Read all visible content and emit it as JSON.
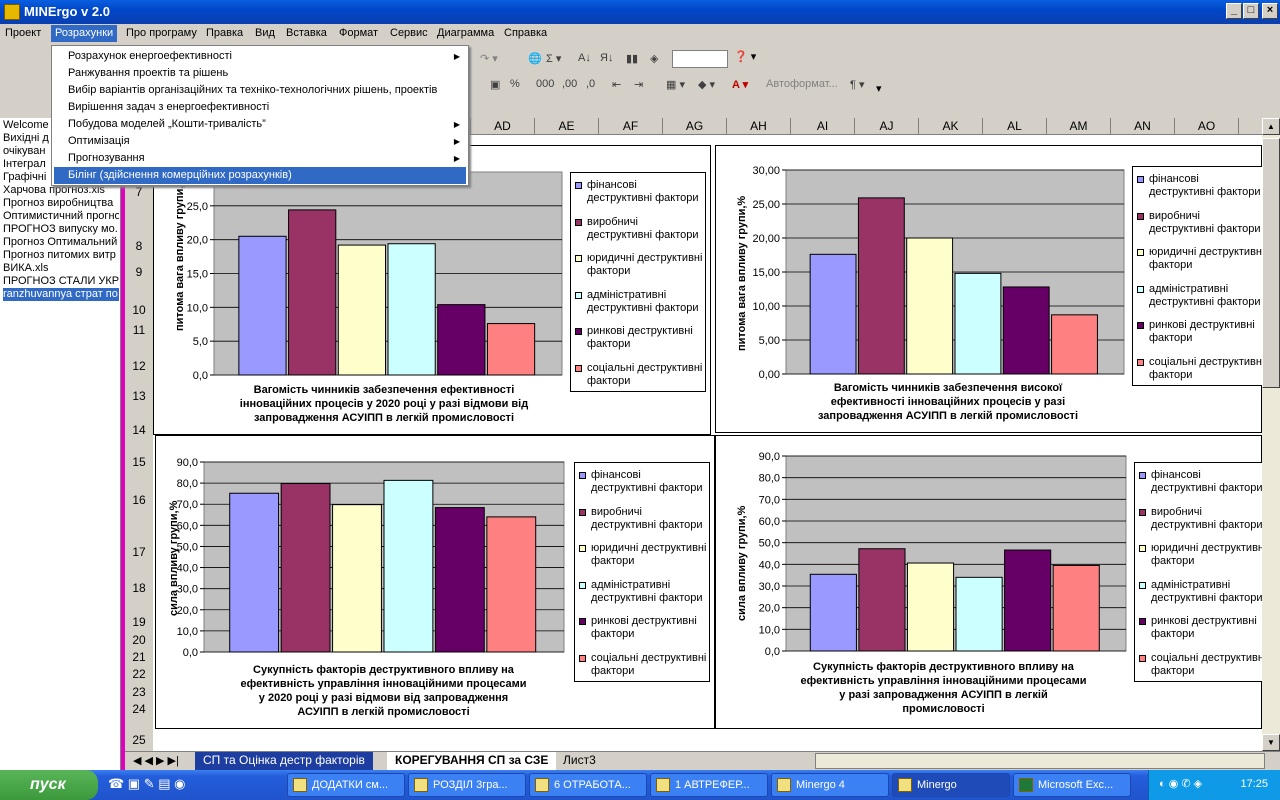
{
  "window": {
    "title": "MINErgo v 2.0"
  },
  "menu": [
    "Проект",
    "Розрахунки",
    "Про програму",
    "Правка",
    "Вид",
    "Вставка",
    "Формат",
    "Сервис",
    "Диаграмма",
    "Справка"
  ],
  "dropdown": [
    {
      "label": "Розрахунок енергоефективності",
      "submenu": true
    },
    {
      "label": "Ранжування проектів та рішень",
      "submenu": false
    },
    {
      "label": "Вибір варіантів організаційних та техніко-технологічних рішень, проектів",
      "submenu": false
    },
    {
      "label": "Вирішення задач з енергоефективності",
      "submenu": false
    },
    {
      "label": "Побудова моделей „Кошти-тривалість”",
      "submenu": true
    },
    {
      "label": "Оптимізація",
      "submenu": true
    },
    {
      "label": "Прогнозування",
      "submenu": true
    },
    {
      "label": "Білінг (здійснення комерційних розрахунків)",
      "submenu": false
    }
  ],
  "toolbar": {
    "autoformat": "Автоформат..."
  },
  "left_files": [
    "Welcome",
    "Вихідні д",
    "очікуван",
    "Інтеграл",
    "Графічні",
    "Харчова прогноз.xls",
    "Прогноз виробництва",
    "Оптимистичний прогно",
    "ПРОГНОЗ випуску мо.",
    "Прогноз Оптимальний",
    "Прогноз питомих витр",
    "ВИКА.xls",
    "ПРОГНОЗ СТАЛИ УКР",
    "ranzhuvannya страт по"
  ],
  "columns": [
    "AD",
    "AE",
    "AF",
    "AG",
    "AH",
    "AI",
    "AJ",
    "AK",
    "AL",
    "AM",
    "AN",
    "AO"
  ],
  "rows": [
    "7",
    "8",
    "9",
    "10",
    "11",
    "12",
    "13",
    "14",
    "15",
    "16",
    "17",
    "18",
    "19",
    "20",
    "21",
    "22",
    "23",
    "24",
    "25"
  ],
  "sheet_tabs": [
    "СП та Оцінка дестр факторів",
    "КОРЕГУВАННЯ СП за СЗЕ",
    "Лист3"
  ],
  "colors": {
    "finance": "#9999ff",
    "production": "#993366",
    "legal": "#ffffcc",
    "admin": "#ccffff",
    "market": "#660066",
    "social": "#ff8080",
    "plot_bg": "#c0c0c0"
  },
  "chart_data": [
    {
      "type": "bar",
      "ylabel": "питома вага впливу групи,%",
      "title": "Вагомість чинників забезпечення ефективності інноваційних процесів у 2020 році у разі відмови від запровадження АСУІПП в легкій промисловості",
      "title_lines": [
        "Вагомість чинників забезпечення ефективності",
        "інноваційних процесів у 2020 році у разі відмови від",
        "запровадження АСУІПП в легкій промисловості"
      ],
      "ylim": [
        0,
        30
      ],
      "ticks": [
        "0,0",
        "5,0",
        "10,0",
        "15,0",
        "20,0",
        "25,0"
      ],
      "series": [
        {
          "name": "фінансові деструктивні фактори",
          "legend": [
            "фінансові",
            "деструктивні фактори"
          ],
          "value": 20.5
        },
        {
          "name": "виробничі деструктивні фактори",
          "legend": [
            "виробничі",
            "деструктивні фактори"
          ],
          "value": 24.4
        },
        {
          "name": "юридичні деструктивні фактори",
          "legend": [
            "юридичні деструктивні",
            "фактори"
          ],
          "value": 19.2
        },
        {
          "name": "адміністративні деструктивні фактори",
          "legend": [
            "адміністративні",
            "деструктивні фактори"
          ],
          "value": 19.4
        },
        {
          "name": "ринкові деструктивні фактори",
          "legend": [
            "ринкові деструктивні",
            "фактори"
          ],
          "value": 10.4
        },
        {
          "name": "соціальні деструктивні фактори",
          "legend": [
            "соціальні деструктивні",
            "фактори"
          ],
          "value": 7.6
        }
      ]
    },
    {
      "type": "bar",
      "ylabel": "питома вага впливу групи,%",
      "title": "Вагомість чинників забезпечення високої ефективності інноваційних процесів у разі запровадження АСУІПП в легкій промисловості",
      "title_lines": [
        "Вагомість чинників забезпечення високої",
        "ефективності інноваційних процесів у разі",
        "запровадження АСУІПП в легкій промисловості"
      ],
      "ylim": [
        0,
        30
      ],
      "ticks": [
        "0,00",
        "5,00",
        "10,00",
        "15,00",
        "20,00",
        "25,00",
        "30,00"
      ],
      "series": [
        {
          "name": "фінансові деструктивні фактори",
          "legend": [
            "фінансові",
            "деструктивні фактори"
          ],
          "value": 17.6
        },
        {
          "name": "виробничі деструктивні фактори",
          "legend": [
            "виробничі",
            "деструктивні фактори"
          ],
          "value": 25.9
        },
        {
          "name": "юридичні деструктивні фактори",
          "legend": [
            "юридичні деструктивні",
            "фактори"
          ],
          "value": 20.0
        },
        {
          "name": "адміністративні деструктивні фактори",
          "legend": [
            "адміністративні",
            "деструктивні фактори"
          ],
          "value": 14.8
        },
        {
          "name": "ринкові деструктивні фактори",
          "legend": [
            "ринкові деструктивні",
            "фактори"
          ],
          "value": 12.8
        },
        {
          "name": "соціальні деструктивні фактори",
          "legend": [
            "соціальні деструктивні",
            "фактори"
          ],
          "value": 8.7
        }
      ]
    },
    {
      "type": "bar",
      "ylabel": "сила впливу групи,%",
      "title": "Сукупність факторів деструктивного впливу на ефективність управління інноваційними процесами у 2020 році у разі відмови від запровадження АСУІПП в легкій промисловості",
      "title_lines": [
        "Сукупність факторів деструктивного впливу на",
        "ефективність управління інноваційними процесами",
        "у 2020 році у разі відмови від запровадження",
        "АСУІПП в легкій промисловості"
      ],
      "ylim": [
        0,
        90
      ],
      "ticks": [
        "0,0",
        "10,0",
        "20,0",
        "30,0",
        "40,0",
        "50,0",
        "60,0",
        "70,0",
        "80,0",
        "90,0"
      ],
      "series": [
        {
          "name": "фінансові деструктивні фактори",
          "legend": [
            "фінансові",
            "деструктивні фактори"
          ],
          "value": 75.2
        },
        {
          "name": "виробничі деструктивні фактори",
          "legend": [
            "виробничі",
            "деструктивні фактори"
          ],
          "value": 79.8
        },
        {
          "name": "юридичні деструктивні фактори",
          "legend": [
            "юридичні деструктивні",
            "фактори"
          ],
          "value": 69.8
        },
        {
          "name": "адміністративні деструктивні фактори",
          "legend": [
            "адміністративні",
            "деструктивні фактори"
          ],
          "value": 81.3
        },
        {
          "name": "ринкові деструктивні фактори",
          "legend": [
            "ринкові деструктивні",
            "фактори"
          ],
          "value": 68.4
        },
        {
          "name": "соціальні деструктивні фактори",
          "legend": [
            "соціальні деструктивні",
            "фактори"
          ],
          "value": 64.0
        }
      ]
    },
    {
      "type": "bar",
      "ylabel": "сила впливу групи,%",
      "title": "Сукупність факторів деструктивного впливу на ефективність управління інноваційними процесами у разі запровадження АСУІПП в легкій промисловості",
      "title_lines": [
        "Сукупність факторів деструктивного впливу на",
        "ефективність управління інноваційними процесами",
        "у разі запровадження АСУІПП в легкій",
        "промисловості"
      ],
      "ylim": [
        0,
        90
      ],
      "ticks": [
        "0,0",
        "10,0",
        "20,0",
        "30,0",
        "40,0",
        "50,0",
        "60,0",
        "70,0",
        "80,0",
        "90,0"
      ],
      "series": [
        {
          "name": "фінансові деструктивні фактори",
          "legend": [
            "фінансові",
            "деструктивні фактори"
          ],
          "value": 35.4
        },
        {
          "name": "виробничі деструктивні фактори",
          "legend": [
            "виробничі",
            "деструктивні фактори"
          ],
          "value": 47.2
        },
        {
          "name": "юридичні деструктивні фактори",
          "legend": [
            "юридичні деструктивні",
            "фактори"
          ],
          "value": 40.6
        },
        {
          "name": "адміністративні деструктивні фактори",
          "legend": [
            "адміністративні",
            "деструктивні фактори"
          ],
          "value": 34.0
        },
        {
          "name": "ринкові деструктивні фактори",
          "legend": [
            "ринкові деструктивні",
            "фактори"
          ],
          "value": 46.6
        },
        {
          "name": "соціальні деструктивні фактори",
          "legend": [
            "соціальні деструктивні",
            "фактори"
          ],
          "value": 39.5
        }
      ]
    }
  ],
  "taskbar": {
    "start": "пуск",
    "items": [
      "ДОДАТКИ см...",
      "РОЗДІЛ 3гра...",
      "6 ОТРАБОТА...",
      "1 АВТРЕФЕР...",
      "Minergo 4",
      "Minergo",
      "Microsoft Exc..."
    ],
    "clock": "17:25"
  }
}
